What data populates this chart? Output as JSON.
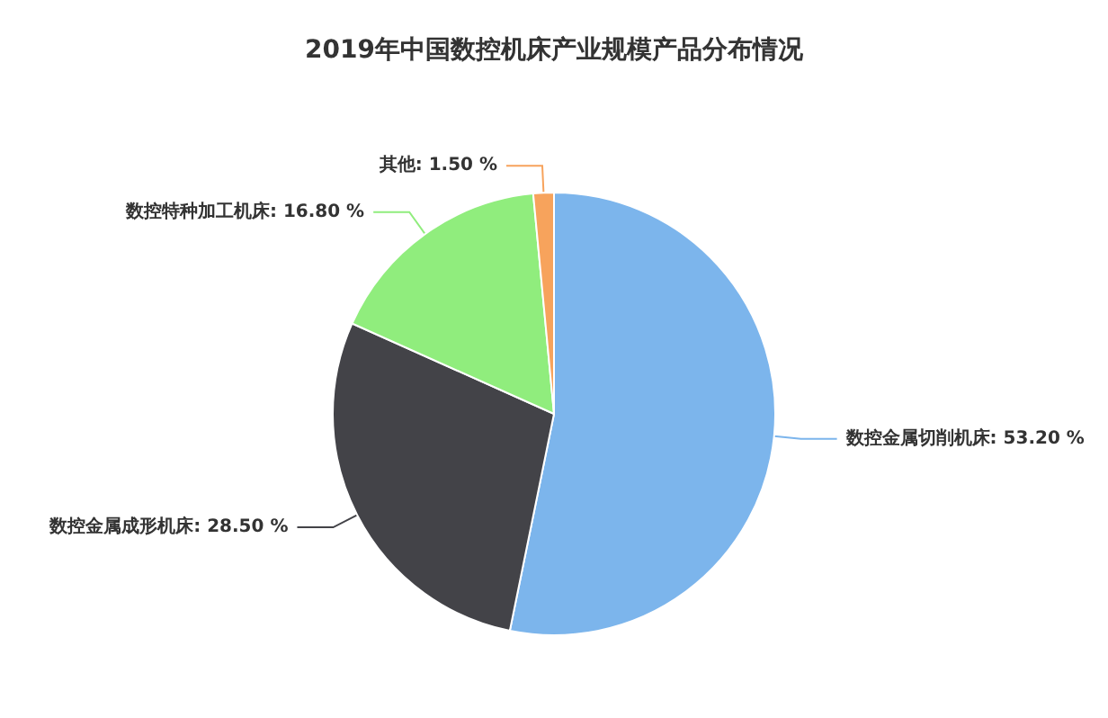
{
  "chart_data": {
    "type": "pie",
    "title": "2019年中国数控机床产业规模产品分布情况",
    "categories": [
      "数控金属切削机床",
      "数控金属成形机床",
      "数控特种加工机床",
      "其他"
    ],
    "values": [
      53.2,
      28.5,
      16.8,
      1.5
    ],
    "value_labels": [
      "53.20 %",
      "28.50 %",
      "16.80 %",
      "1.50 %"
    ],
    "colors": [
      "#7cb5ec",
      "#434348",
      "#90ed7d",
      "#f7a35c"
    ],
    "legend": false
  }
}
